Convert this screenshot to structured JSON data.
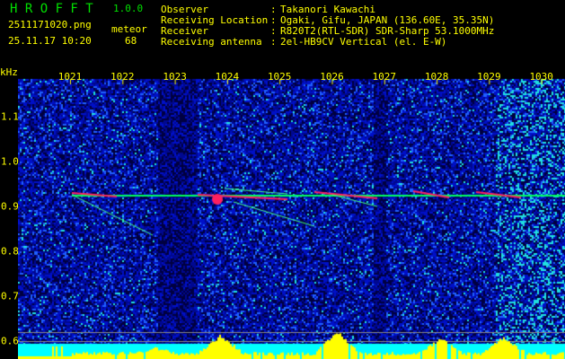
{
  "app": {
    "name": "H R O F F T",
    "version": "1.0.0"
  },
  "file": {
    "name": "2511171020.png",
    "datetime": "25.11.17 10:20"
  },
  "count": {
    "label": "meteor",
    "value": "68"
  },
  "info": [
    {
      "label": "Observer",
      "value": "Takanori Kawachi"
    },
    {
      "label": "Receiving Location",
      "value": "Ogaki, Gifu, JAPAN (136.60E, 35.35N)"
    },
    {
      "label": "Receiver",
      "value": "R820T2(RTL-SDR) SDR-Sharp 53.1000MHz"
    },
    {
      "label": "Receiving antenna",
      "value": "2el-HB9CV Vertical (el. E-W)"
    }
  ],
  "axis": {
    "y_unit": "kHz",
    "x_ticks": [
      "1021",
      "1022",
      "1023",
      "1024",
      "1025",
      "1026",
      "1027",
      "1028",
      "1029",
      "1030"
    ],
    "y_ticks": [
      "1.1",
      "1.0",
      "0.9",
      "0.8",
      "0.7",
      "0.6"
    ]
  },
  "colors": {
    "text": "#ffff00",
    "title": "#00e000",
    "background": "#000000",
    "noise": "#0000c0",
    "meteor_line": "#00ff60",
    "echo": "#ff2060",
    "histogram": "#ffff00",
    "histogram_bg": "#00ffff"
  }
}
